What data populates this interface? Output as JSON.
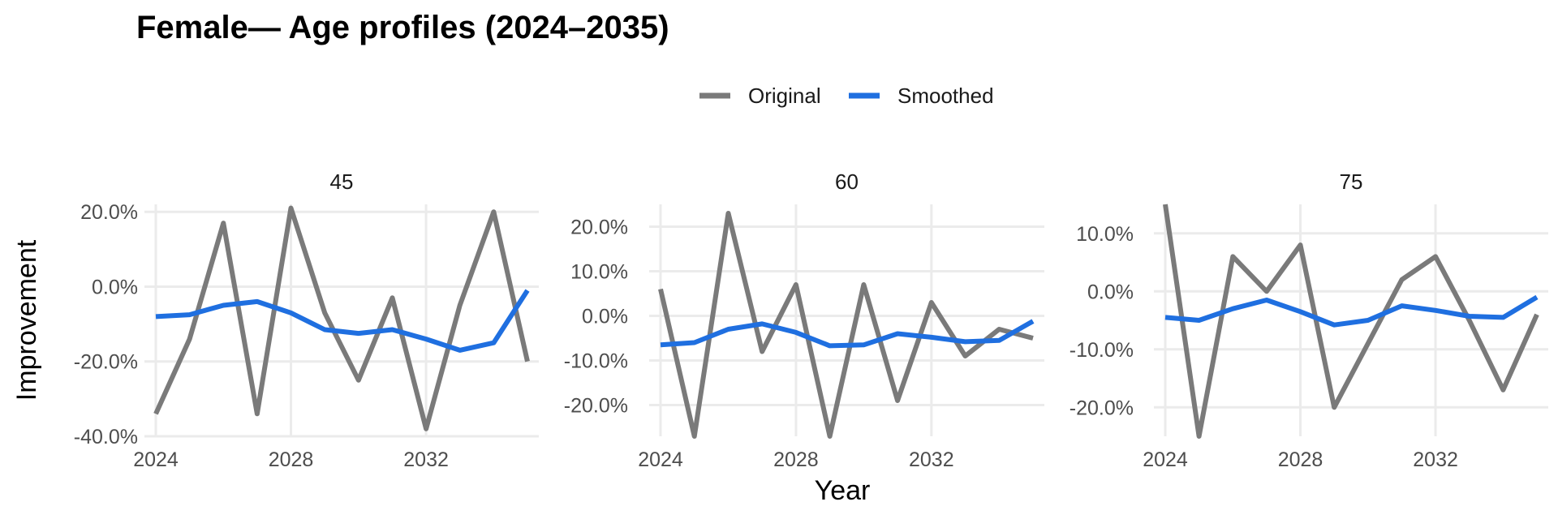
{
  "chart_data": {
    "type": "line",
    "title": "Female— Age profiles (2024–2035)",
    "xlabel": "Year",
    "ylabel": "Improvement",
    "legend": {
      "placement": "top",
      "entries": [
        {
          "name": "Original",
          "color": "#7a7a7a"
        },
        {
          "name": "Smoothed",
          "color": "#1f6fe0"
        }
      ]
    },
    "x": [
      2024,
      2025,
      2026,
      2027,
      2028,
      2029,
      2030,
      2031,
      2032,
      2033,
      2034,
      2035
    ],
    "x_ticks": [
      2024,
      2028,
      2032
    ],
    "x_tick_labels": [
      "2024",
      "2028",
      "2032"
    ],
    "xlim": [
      2024,
      2035
    ],
    "grid": true,
    "panels": [
      {
        "label": "45",
        "ylim": [
          -0.4,
          0.22
        ],
        "y_ticks": [
          -0.4,
          -0.2,
          0.0,
          0.2
        ],
        "y_tick_labels": [
          "-40.0%",
          "-20.0%",
          "0.0%",
          "20.0%"
        ],
        "series": [
          {
            "name": "Original",
            "values": [
              -0.34,
              -0.14,
              0.17,
              -0.34,
              0.21,
              -0.07,
              -0.25,
              -0.03,
              -0.38,
              -0.05,
              0.2,
              -0.2
            ]
          },
          {
            "name": "Smoothed",
            "values": [
              -0.08,
              -0.075,
              -0.05,
              -0.04,
              -0.07,
              -0.115,
              -0.125,
              -0.115,
              -0.14,
              -0.17,
              -0.15,
              -0.01
            ]
          }
        ]
      },
      {
        "label": "60",
        "ylim": [
          -0.27,
          0.25
        ],
        "y_ticks": [
          -0.2,
          -0.1,
          0.0,
          0.1,
          0.2
        ],
        "y_tick_labels": [
          "-20.0%",
          "-10.0%",
          "0.0%",
          "10.0%",
          "20.0%"
        ],
        "series": [
          {
            "name": "Original",
            "values": [
              0.06,
              -0.27,
              0.23,
              -0.08,
              0.07,
              -0.27,
              0.07,
              -0.19,
              0.03,
              -0.09,
              -0.03,
              -0.05
            ]
          },
          {
            "name": "Smoothed",
            "values": [
              -0.065,
              -0.06,
              -0.03,
              -0.018,
              -0.037,
              -0.067,
              -0.065,
              -0.04,
              -0.048,
              -0.058,
              -0.055,
              -0.012
            ]
          }
        ]
      },
      {
        "label": "75",
        "ylim": [
          -0.25,
          0.15
        ],
        "y_ticks": [
          -0.2,
          -0.1,
          0.0,
          0.1
        ],
        "y_tick_labels": [
          "-20.0%",
          "-10.0%",
          "0.0%",
          "10.0%"
        ],
        "series": [
          {
            "name": "Original",
            "values": [
              0.15,
              -0.25,
              0.06,
              0.0,
              0.08,
              -0.2,
              -0.09,
              0.02,
              0.06,
              -0.05,
              -0.17,
              -0.04
            ]
          },
          {
            "name": "Smoothed",
            "values": [
              -0.045,
              -0.05,
              -0.03,
              -0.015,
              -0.035,
              -0.058,
              -0.05,
              -0.025,
              -0.033,
              -0.043,
              -0.045,
              -0.01
            ]
          }
        ]
      }
    ]
  }
}
